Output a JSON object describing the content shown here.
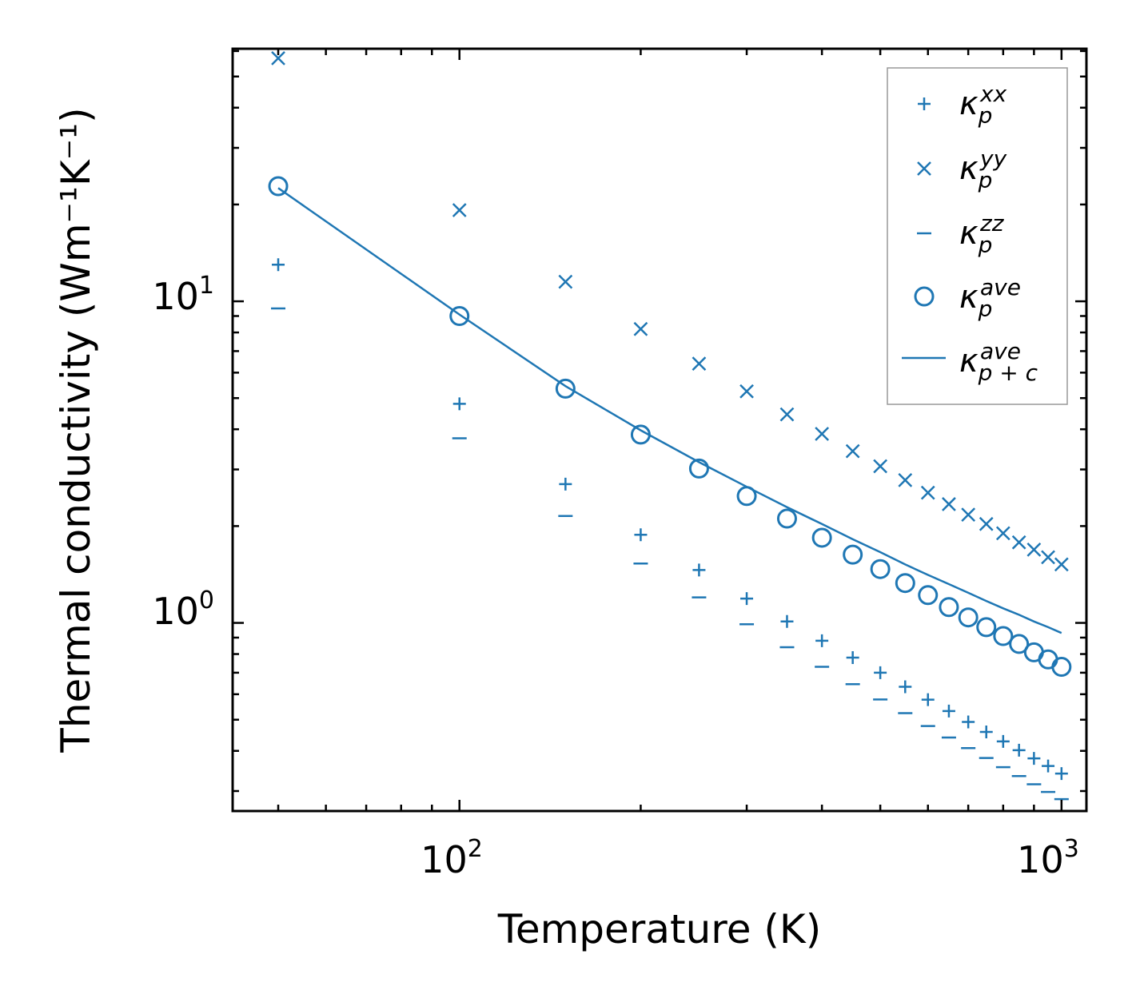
{
  "chart_data": {
    "type": "scatter",
    "xscale": "log",
    "yscale": "log",
    "xlabel": "Temperature (K)",
    "ylabel": "Thermal conductivity (Wm⁻¹K⁻¹)",
    "xlim": [
      42,
      1100
    ],
    "ylim": [
      0.26,
      61
    ],
    "xticks": [
      {
        "base": "10",
        "exp": "2",
        "value": 100
      },
      {
        "base": "10",
        "exp": "3",
        "value": 1000
      }
    ],
    "yticks": [
      {
        "base": "10",
        "exp": "0",
        "value": 1
      },
      {
        "base": "10",
        "exp": "1",
        "value": 10
      }
    ],
    "legend_position": "top-right",
    "color": "#1f77b4",
    "series": [
      {
        "name": "kappa_p^xx",
        "symbol": "κ",
        "sub": "p",
        "sup": "xx",
        "marker": "plus",
        "x": [
          50,
          100,
          150,
          200,
          250,
          300,
          350,
          400,
          450,
          500,
          550,
          600,
          650,
          700,
          750,
          800,
          850,
          900,
          950,
          1000
        ],
        "y": [
          13.0,
          4.8,
          2.7,
          1.88,
          1.46,
          1.19,
          1.01,
          0.88,
          0.78,
          0.7,
          0.633,
          0.577,
          0.532,
          0.492,
          0.458,
          0.428,
          0.402,
          0.379,
          0.359,
          0.34
        ]
      },
      {
        "name": "kappa_p^yy",
        "symbol": "κ",
        "sub": "p",
        "sup": "yy",
        "marker": "x",
        "x": [
          50,
          100,
          150,
          200,
          250,
          300,
          350,
          400,
          450,
          500,
          550,
          600,
          650,
          700,
          750,
          800,
          850,
          900,
          950,
          1000
        ],
        "y": [
          57,
          19.2,
          11.5,
          8.2,
          6.4,
          5.25,
          4.45,
          3.87,
          3.42,
          3.07,
          2.78,
          2.54,
          2.34,
          2.17,
          2.03,
          1.9,
          1.78,
          1.69,
          1.6,
          1.52
        ]
      },
      {
        "name": "kappa_p^zz",
        "symbol": "κ",
        "sub": "p",
        "sup": "zz",
        "marker": "hline",
        "x": [
          50,
          100,
          150,
          200,
          250,
          300,
          350,
          400,
          450,
          500,
          550,
          600,
          650,
          700,
          750,
          800,
          850,
          900,
          950,
          1000
        ],
        "y": [
          9.5,
          3.75,
          2.15,
          1.53,
          1.2,
          0.99,
          0.84,
          0.73,
          0.645,
          0.578,
          0.524,
          0.478,
          0.44,
          0.408,
          0.38,
          0.356,
          0.334,
          0.315,
          0.298,
          0.283
        ]
      },
      {
        "name": "kappa_p^ave",
        "symbol": "κ",
        "sub": "p",
        "sup": "ave",
        "marker": "circle",
        "x": [
          50,
          100,
          150,
          200,
          250,
          300,
          350,
          400,
          450,
          500,
          550,
          600,
          650,
          700,
          750,
          800,
          850,
          900,
          950,
          1000
        ],
        "y": [
          22.8,
          9.0,
          5.35,
          3.85,
          3.02,
          2.48,
          2.11,
          1.84,
          1.63,
          1.47,
          1.33,
          1.22,
          1.12,
          1.04,
          0.97,
          0.91,
          0.86,
          0.81,
          0.77,
          0.73
        ]
      },
      {
        "name": "kappa_p+c^ave",
        "symbol": "κ",
        "sub": "p + c",
        "sup": "ave",
        "marker": "line",
        "x": [
          50,
          100,
          150,
          200,
          250,
          300,
          350,
          400,
          450,
          500,
          550,
          600,
          650,
          700,
          750,
          800,
          850,
          900,
          950,
          1000
        ],
        "y": [
          22.5,
          9.1,
          5.45,
          3.97,
          3.16,
          2.65,
          2.29,
          2.03,
          1.82,
          1.66,
          1.52,
          1.41,
          1.32,
          1.24,
          1.17,
          1.11,
          1.06,
          1.01,
          0.97,
          0.93
        ]
      }
    ]
  }
}
